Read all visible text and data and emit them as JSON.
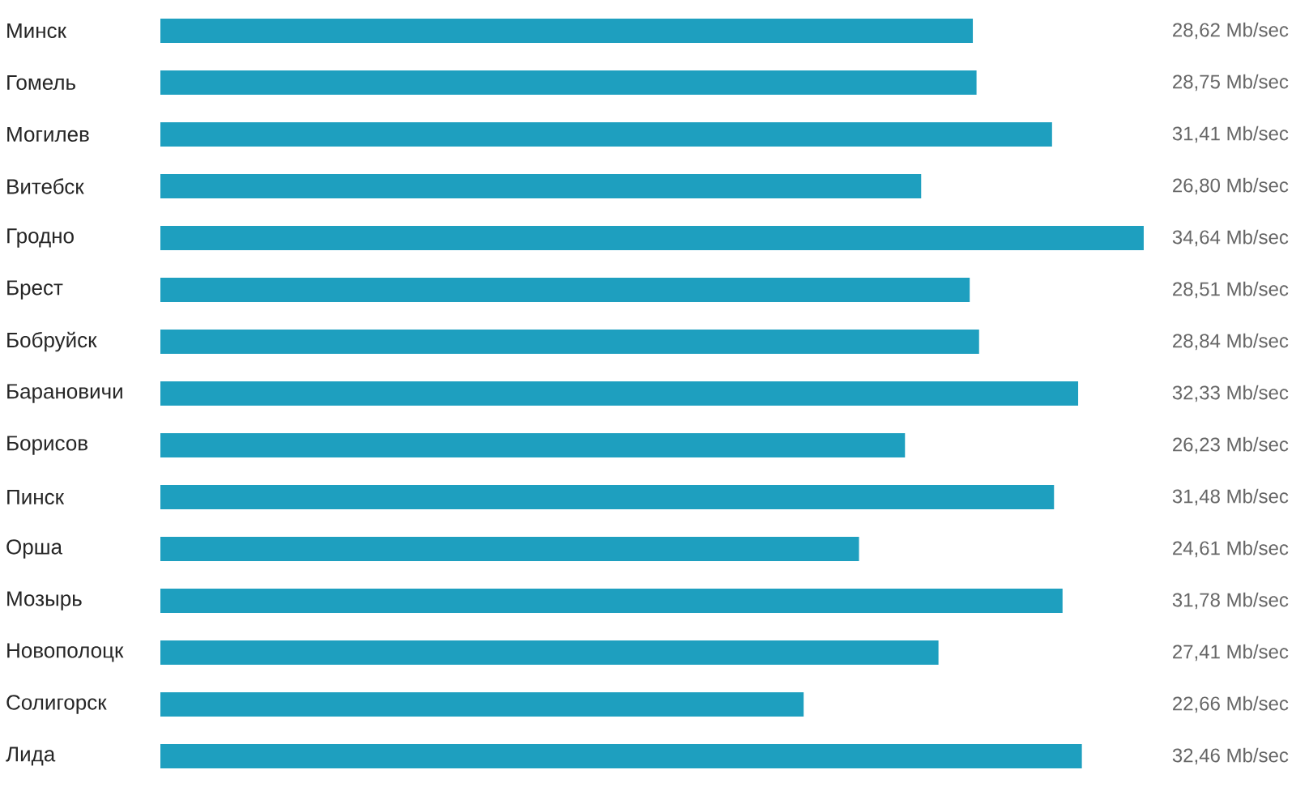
{
  "chart_data": {
    "type": "bar",
    "orientation": "horizontal",
    "color": "#1e9fbf",
    "categories": [
      "Минск",
      "Гомель",
      "Могилев",
      "Витебск",
      "Гродно",
      "Брест",
      "Бобруйск",
      "Барановичи",
      "Борисов",
      "Пинск",
      "Орша",
      "Мозырь",
      "Новополоцк",
      "Солигорск",
      "Лида"
    ],
    "values": [
      28.62,
      28.75,
      31.41,
      26.8,
      34.64,
      28.51,
      28.84,
      32.33,
      26.23,
      31.48,
      24.61,
      31.78,
      27.41,
      22.66,
      32.46
    ],
    "value_labels": [
      "28,62 Mb/sec",
      "28,75 Mb/sec",
      "31,41 Mb/sec",
      "26,80 Mb/sec",
      "34,64 Mb/sec",
      "28,51 Mb/sec",
      "28,84 Mb/sec",
      "32,33 Mb/sec",
      "26,23 Mb/sec",
      "31,48 Mb/sec",
      "24,61 Mb/sec",
      "31,78 Mb/sec",
      "27,41 Mb/sec",
      "22,66 Mb/sec",
      "32,46 Mb/sec"
    ]
  }
}
